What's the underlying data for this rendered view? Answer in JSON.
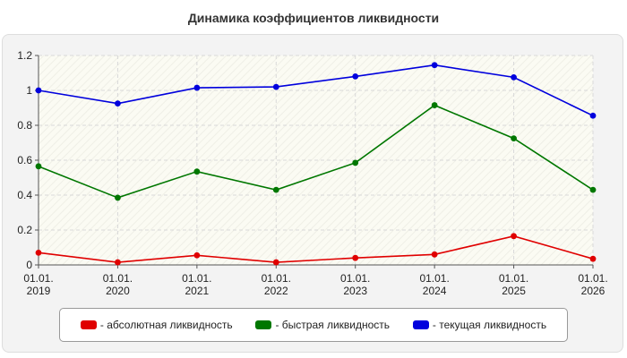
{
  "chart_data": {
    "type": "line",
    "title": "Динамика коэффициентов ликвидности",
    "categories": [
      "01.01.2019",
      "01.01.2020",
      "01.01.2021",
      "01.01.2022",
      "01.01.2023",
      "01.01.2024",
      "01.01.2025",
      "01.01.2026"
    ],
    "x_tick_lines": [
      [
        "01.01.",
        "2019"
      ],
      [
        "01.01.",
        "2020"
      ],
      [
        "01.01.",
        "2021"
      ],
      [
        "01.01.",
        "2022"
      ],
      [
        "01.01.",
        "2023"
      ],
      [
        "01.01.",
        "2024"
      ],
      [
        "01.01.",
        "2025"
      ],
      [
        "01.01.",
        "2026"
      ]
    ],
    "y_ticks": [
      "0",
      "0.2",
      "0.4",
      "0.6",
      "0.8",
      "1",
      "1.2"
    ],
    "ylim": [
      0,
      1.2
    ],
    "grid": true,
    "legend_position": "bottom",
    "series": [
      {
        "name": "- абсолютная ликвидность",
        "color": "#e00000",
        "values": [
          0.07,
          0.015,
          0.055,
          0.015,
          0.04,
          0.06,
          0.165,
          0.035
        ]
      },
      {
        "name": "- быстрая ликвидность",
        "color": "#007700",
        "values": [
          0.565,
          0.385,
          0.535,
          0.43,
          0.585,
          0.915,
          0.725,
          0.43
        ]
      },
      {
        "name": "- текущая ликвидность",
        "color": "#0000dd",
        "values": [
          1.0,
          0.925,
          1.015,
          1.02,
          1.08,
          1.145,
          1.075,
          0.855
        ]
      }
    ]
  }
}
